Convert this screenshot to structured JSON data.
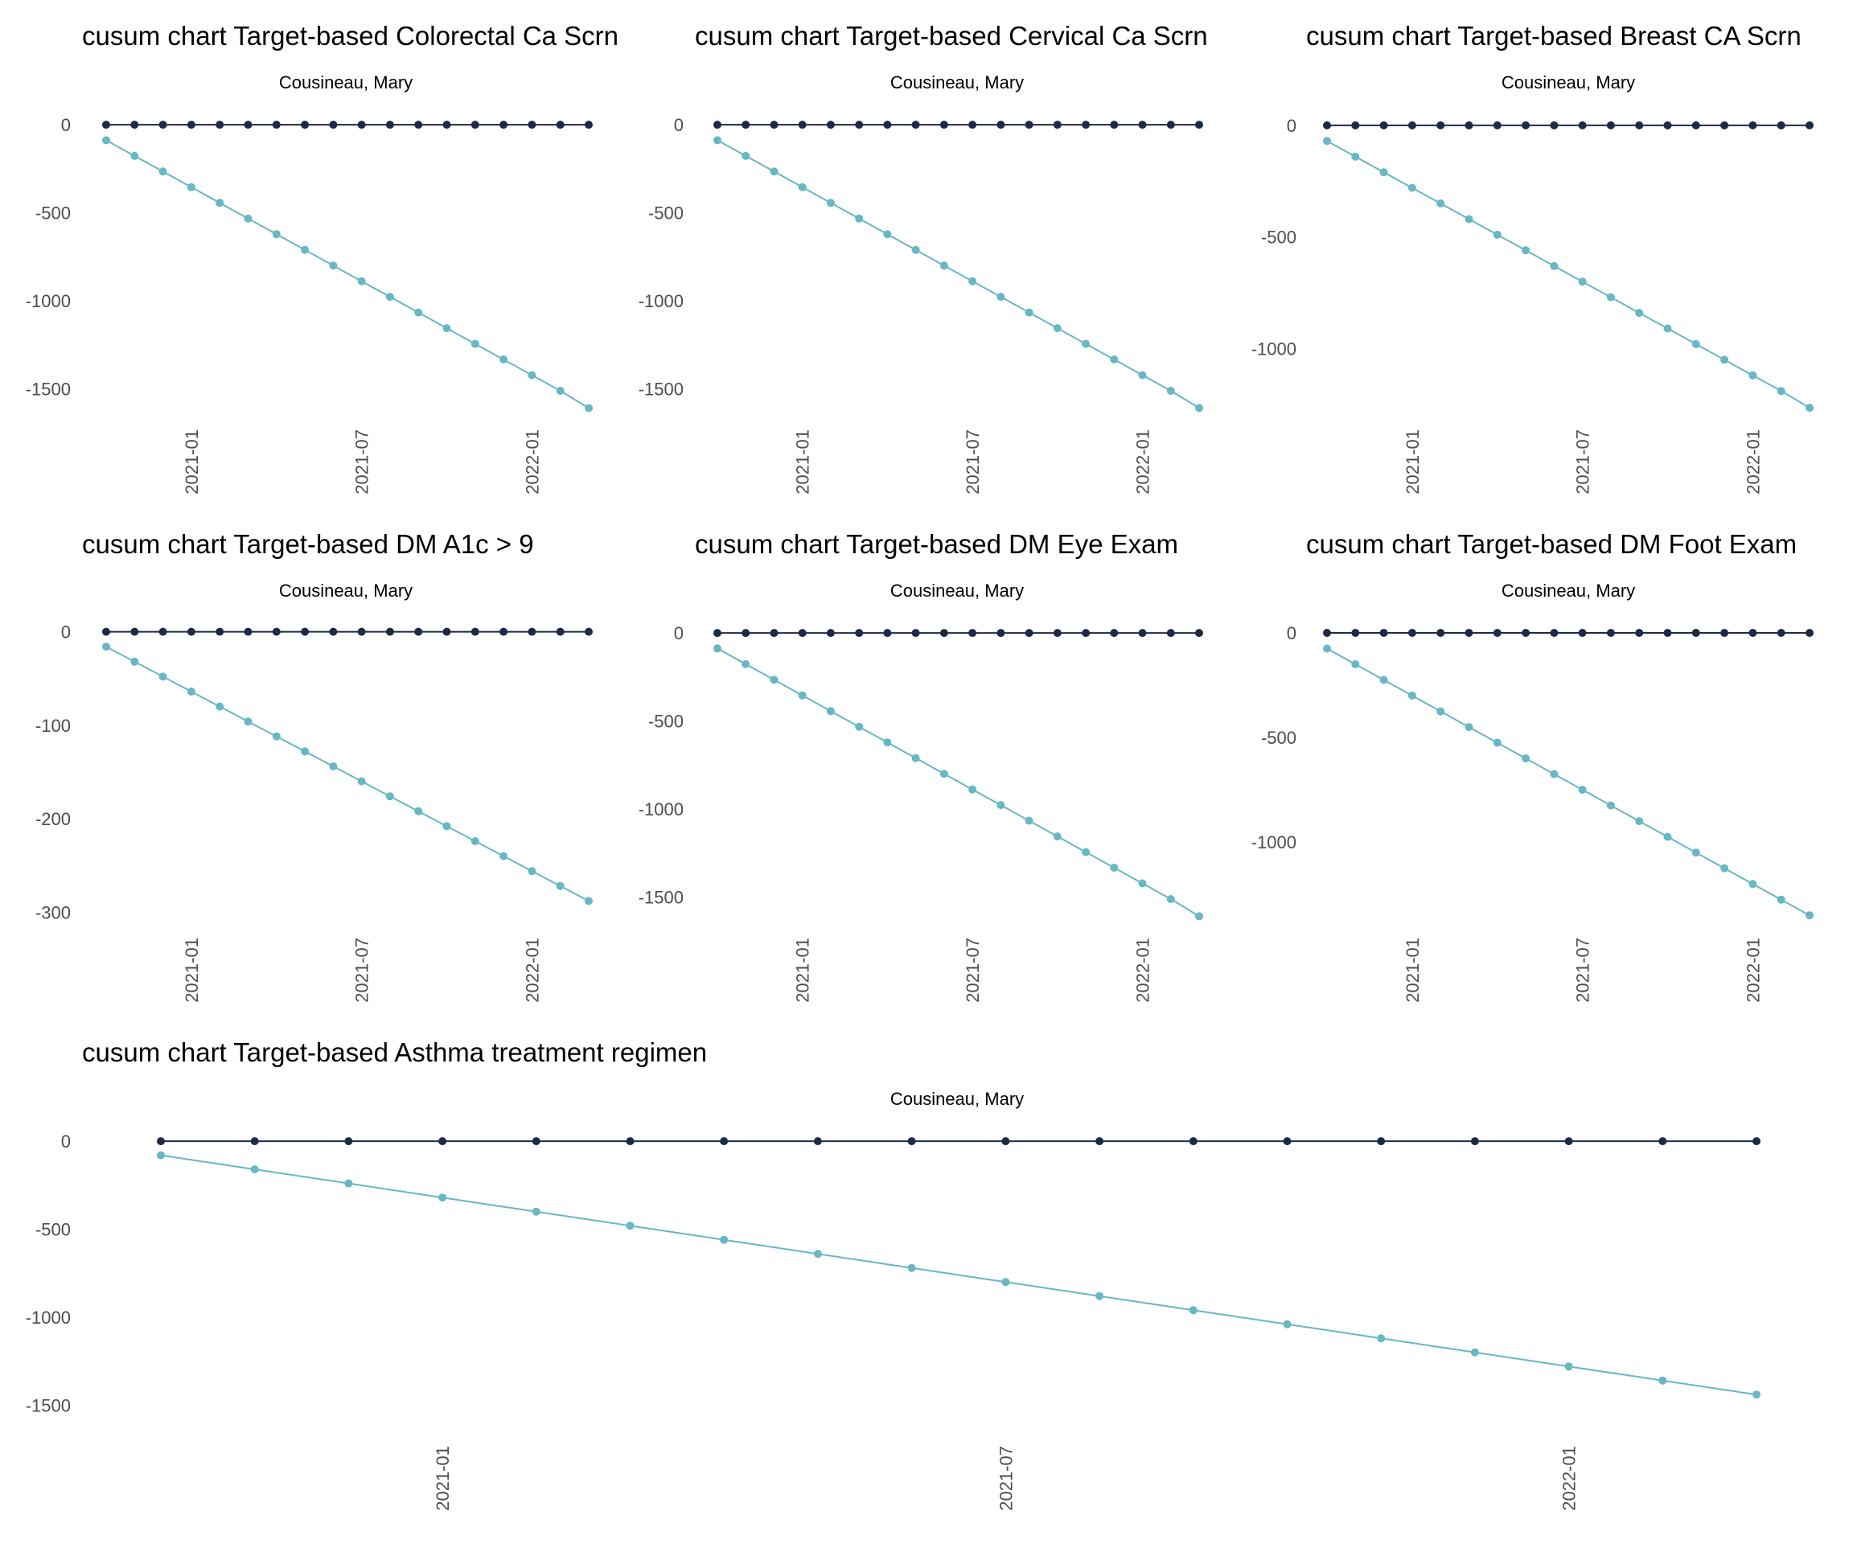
{
  "colors": {
    "cusum_line": "#1b2a47",
    "target_line": "#67b7c5",
    "axis_text": "#4d4d4d",
    "title_text": "#000000"
  },
  "chart_data": [
    {
      "type": "line",
      "title": "cusum chart Target-based  Colorectal Ca Scrn",
      "subtitle": "Cousineau, Mary",
      "x": [
        "2020-10",
        "2020-11",
        "2020-12",
        "2021-01",
        "2021-02",
        "2021-03",
        "2021-04",
        "2021-05",
        "2021-06",
        "2021-07",
        "2021-08",
        "2021-09",
        "2021-10",
        "2021-11",
        "2021-12",
        "2022-01",
        "2022-02",
        "2022-03"
      ],
      "x_ticks": [
        "2021-01",
        "2021-07",
        "2022-01"
      ],
      "y_ticks": [
        0,
        -500,
        -1000,
        -1500
      ],
      "ylim": [
        -1640,
        60
      ],
      "series": [
        {
          "name": "cusum",
          "values": [
            0,
            0,
            0,
            0,
            0,
            0,
            0,
            0,
            0,
            0,
            0,
            0,
            0,
            0,
            0,
            0,
            0,
            0
          ]
        },
        {
          "name": "target",
          "values": [
            -88,
            -177,
            -266,
            -355,
            -444,
            -533,
            -622,
            -711,
            -800,
            -889,
            -978,
            -1067,
            -1156,
            -1245,
            -1334,
            -1423,
            -1512,
            -1610
          ]
        }
      ]
    },
    {
      "type": "line",
      "title": "cusum chart Target-based  Cervical Ca Scrn",
      "subtitle": "Cousineau, Mary",
      "x": [
        "2020-10",
        "2020-11",
        "2020-12",
        "2021-01",
        "2021-02",
        "2021-03",
        "2021-04",
        "2021-05",
        "2021-06",
        "2021-07",
        "2021-08",
        "2021-09",
        "2021-10",
        "2021-11",
        "2021-12",
        "2022-01",
        "2022-02",
        "2022-03"
      ],
      "x_ticks": [
        "2021-01",
        "2021-07",
        "2022-01"
      ],
      "y_ticks": [
        0,
        -500,
        -1000,
        -1500
      ],
      "ylim": [
        -1640,
        60
      ],
      "series": [
        {
          "name": "cusum",
          "values": [
            0,
            0,
            0,
            0,
            0,
            0,
            0,
            0,
            0,
            0,
            0,
            0,
            0,
            0,
            0,
            0,
            0,
            0
          ]
        },
        {
          "name": "target",
          "values": [
            -88,
            -177,
            -266,
            -355,
            -444,
            -533,
            -622,
            -711,
            -800,
            -889,
            -978,
            -1067,
            -1156,
            -1245,
            -1334,
            -1423,
            -1512,
            -1610
          ]
        }
      ]
    },
    {
      "type": "line",
      "title": "cusum chart Target-based  Breast CA Scrn",
      "subtitle": "Cousineau, Mary",
      "x": [
        "2020-10",
        "2020-11",
        "2020-12",
        "2021-01",
        "2021-02",
        "2021-03",
        "2021-04",
        "2021-05",
        "2021-06",
        "2021-07",
        "2021-08",
        "2021-09",
        "2021-10",
        "2021-11",
        "2021-12",
        "2022-01",
        "2022-02",
        "2022-03"
      ],
      "x_ticks": [
        "2021-01",
        "2021-07",
        "2022-01"
      ],
      "y_ticks": [
        0,
        -500,
        -1000
      ],
      "ylim": [
        -1290,
        50
      ],
      "series": [
        {
          "name": "cusum",
          "values": [
            0,
            0,
            0,
            0,
            0,
            0,
            0,
            0,
            0,
            0,
            0,
            0,
            0,
            0,
            0,
            0,
            0,
            0
          ]
        },
        {
          "name": "target",
          "values": [
            -70,
            -140,
            -210,
            -280,
            -350,
            -420,
            -490,
            -560,
            -630,
            -700,
            -770,
            -840,
            -910,
            -980,
            -1050,
            -1120,
            -1190,
            -1265
          ]
        }
      ]
    },
    {
      "type": "line",
      "title": "cusum chart Target-based  DM A1c > 9",
      "subtitle": "Cousineau, Mary",
      "x": [
        "2020-10",
        "2020-11",
        "2020-12",
        "2021-01",
        "2021-02",
        "2021-03",
        "2021-04",
        "2021-05",
        "2021-06",
        "2021-07",
        "2021-08",
        "2021-09",
        "2021-10",
        "2021-11",
        "2021-12",
        "2022-01",
        "2022-02",
        "2022-03"
      ],
      "x_ticks": [
        "2021-01",
        "2021-07",
        "2022-01"
      ],
      "y_ticks": [
        0,
        -100,
        -200,
        -300
      ],
      "ylim": [
        -310,
        10
      ],
      "series": [
        {
          "name": "cusum",
          "values": [
            0,
            0,
            0,
            0,
            0,
            0,
            0,
            0,
            0,
            0,
            0,
            0,
            0,
            0,
            0,
            0,
            0,
            0
          ]
        },
        {
          "name": "target",
          "values": [
            -16,
            -32,
            -48,
            -64,
            -80,
            -96,
            -112,
            -128,
            -144,
            -160,
            -176,
            -192,
            -208,
            -224,
            -240,
            -256,
            -272,
            -288
          ]
        }
      ]
    },
    {
      "type": "line",
      "title": "cusum chart Target-based  DM Eye Exam",
      "subtitle": "Cousineau, Mary",
      "x": [
        "2020-10",
        "2020-11",
        "2020-12",
        "2021-01",
        "2021-02",
        "2021-03",
        "2021-04",
        "2021-05",
        "2021-06",
        "2021-07",
        "2021-08",
        "2021-09",
        "2021-10",
        "2021-11",
        "2021-12",
        "2022-01",
        "2022-02",
        "2022-03"
      ],
      "x_ticks": [
        "2021-01",
        "2021-07",
        "2022-01"
      ],
      "y_ticks": [
        0,
        -500,
        -1000,
        -1500
      ],
      "ylim": [
        -1640,
        60
      ],
      "series": [
        {
          "name": "cusum",
          "values": [
            0,
            0,
            0,
            0,
            0,
            0,
            0,
            0,
            0,
            0,
            0,
            0,
            0,
            0,
            0,
            0,
            0,
            0
          ]
        },
        {
          "name": "target",
          "values": [
            -88,
            -177,
            -266,
            -355,
            -444,
            -533,
            -622,
            -711,
            -800,
            -889,
            -978,
            -1067,
            -1156,
            -1245,
            -1334,
            -1423,
            -1512,
            -1610
          ]
        }
      ]
    },
    {
      "type": "line",
      "title": "cusum chart Target-based  DM Foot Exam",
      "subtitle": "Cousineau, Mary",
      "x": [
        "2020-10",
        "2020-11",
        "2020-12",
        "2021-01",
        "2021-02",
        "2021-03",
        "2021-04",
        "2021-05",
        "2021-06",
        "2021-07",
        "2021-08",
        "2021-09",
        "2021-10",
        "2021-11",
        "2021-12",
        "2022-01",
        "2022-02",
        "2022-03"
      ],
      "x_ticks": [
        "2021-01",
        "2021-07",
        "2022-01"
      ],
      "y_ticks": [
        0,
        -500,
        -1000
      ],
      "ylim": [
        -1380,
        50
      ],
      "series": [
        {
          "name": "cusum",
          "values": [
            0,
            0,
            0,
            0,
            0,
            0,
            0,
            0,
            0,
            0,
            0,
            0,
            0,
            0,
            0,
            0,
            0,
            0
          ]
        },
        {
          "name": "target",
          "values": [
            -75,
            -150,
            -225,
            -300,
            -375,
            -450,
            -525,
            -600,
            -675,
            -750,
            -825,
            -900,
            -975,
            -1050,
            -1125,
            -1200,
            -1275,
            -1350
          ]
        }
      ]
    },
    {
      "type": "line",
      "title": "cusum chart Target-based  Asthma treatment regimen",
      "subtitle": "Cousineau, Mary",
      "x": [
        "2020-10",
        "2020-11",
        "2020-12",
        "2021-01",
        "2021-02",
        "2021-03",
        "2021-04",
        "2021-05",
        "2021-06",
        "2021-07",
        "2021-08",
        "2021-09",
        "2021-10",
        "2021-11",
        "2021-12",
        "2022-01",
        "2022-02",
        "2022-03"
      ],
      "x_ticks": [
        "2021-01",
        "2021-07",
        "2022-01"
      ],
      "y_ticks": [
        0,
        -500,
        -1000,
        -1500
      ],
      "ylim": [
        -1640,
        60
      ],
      "series": [
        {
          "name": "cusum",
          "values": [
            0,
            0,
            0,
            0,
            0,
            0,
            0,
            0,
            0,
            0,
            0,
            0,
            0,
            0,
            0,
            0,
            0,
            0
          ]
        },
        {
          "name": "target",
          "values": [
            -80,
            -160,
            -240,
            -320,
            -400,
            -480,
            -560,
            -640,
            -720,
            -800,
            -880,
            -960,
            -1040,
            -1120,
            -1200,
            -1280,
            -1360,
            -1440
          ]
        }
      ]
    }
  ]
}
